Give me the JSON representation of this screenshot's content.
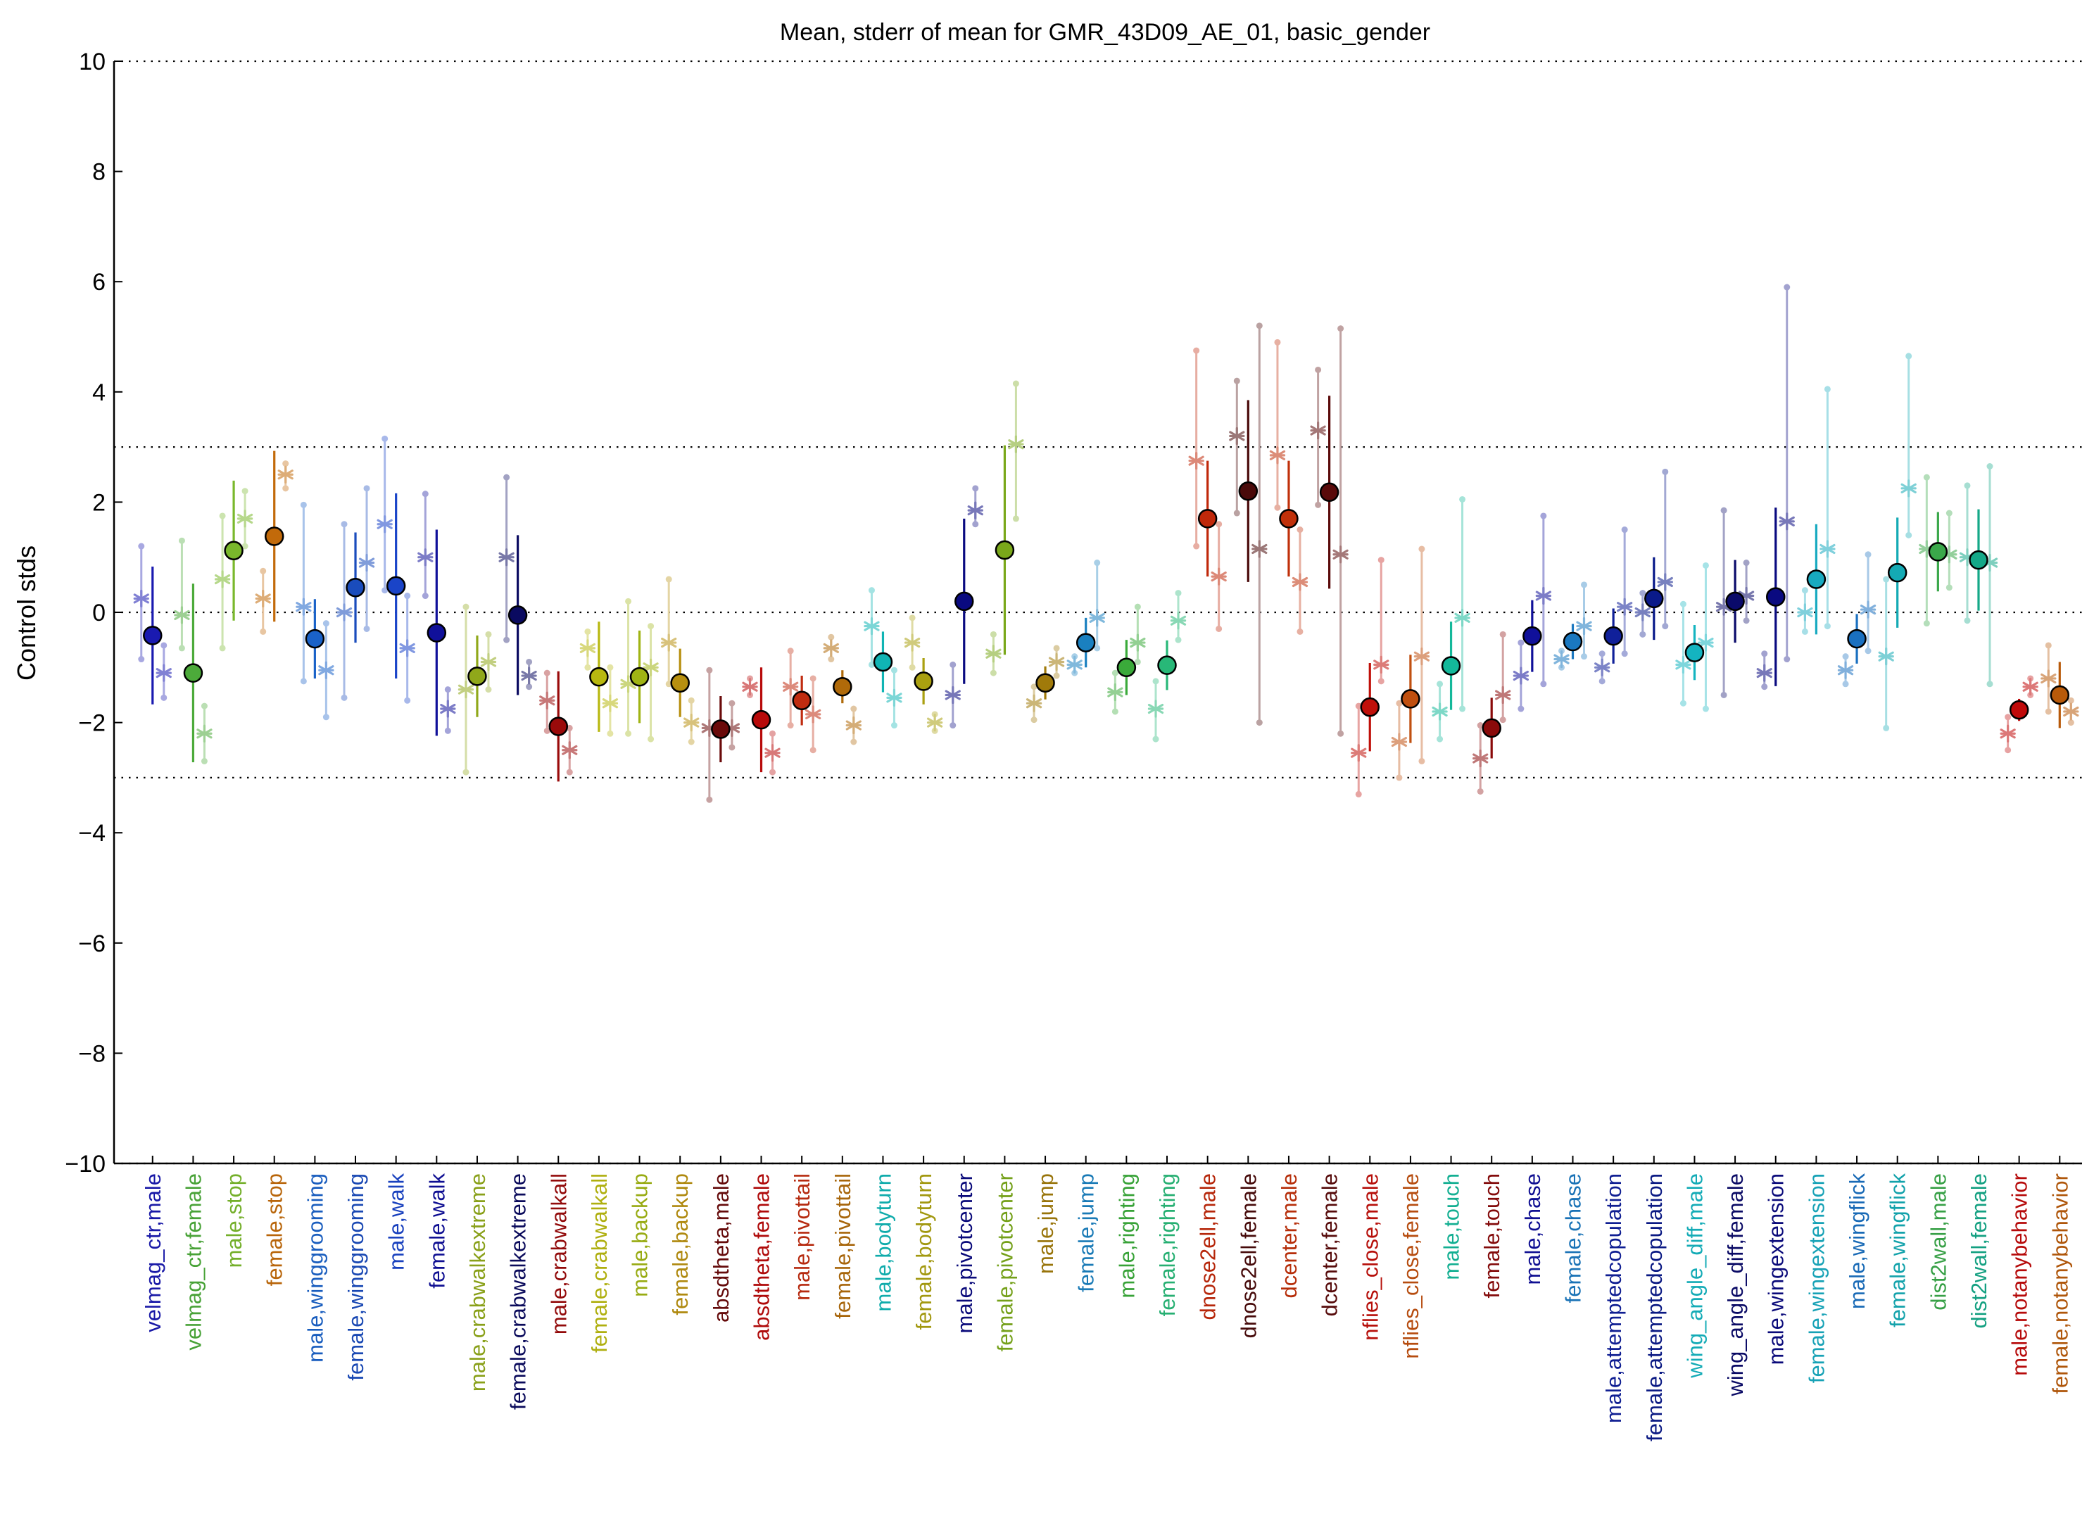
{
  "chart_data": {
    "type": "scatter",
    "title": "Mean, stderr of mean for GMR_43D09_AE_01, basic_gender",
    "ylabel": "Control stds",
    "ylim": [
      -10,
      10
    ],
    "yticks": [
      -10,
      -8,
      -6,
      -4,
      -2,
      0,
      2,
      4,
      6,
      8,
      10
    ],
    "ytick_labels": [
      "−10",
      "−8",
      "−6",
      "−4",
      "−2",
      "0",
      "2",
      "4",
      "6",
      "8",
      "10"
    ],
    "reference_lines": [
      10,
      3,
      0,
      -3,
      -10
    ],
    "categories": [
      {
        "label": "velmag_ctr,male",
        "color": "#1a1ab0",
        "mean": -0.42,
        "err": 1.25,
        "s1": 0.25,
        "s2": -1.1,
        "s1r": [
          -0.85,
          1.2
        ],
        "s2r": [
          -1.55,
          -0.6
        ]
      },
      {
        "label": "velmag_ctr,female",
        "color": "#4caa3a",
        "mean": -1.1,
        "err": 1.62,
        "s1": -0.05,
        "s2": -2.2,
        "s1r": [
          -0.65,
          1.3
        ],
        "s2r": [
          -2.7,
          -1.7
        ]
      },
      {
        "label": "male,stop",
        "color": "#7ab82c",
        "mean": 1.12,
        "err": 1.27,
        "s1": 0.6,
        "s2": 1.7,
        "s1r": [
          -0.65,
          1.75
        ],
        "s2r": [
          1.2,
          2.2
        ]
      },
      {
        "label": "female,stop",
        "color": "#c26a0a",
        "mean": 1.38,
        "err": 1.55,
        "s1": 0.25,
        "s2": 2.5,
        "s1r": [
          -0.35,
          0.75
        ],
        "s2r": [
          2.25,
          2.7
        ]
      },
      {
        "label": "male,winggrooming",
        "color": "#1a62c8",
        "mean": -0.48,
        "err": 0.72,
        "s1": 0.1,
        "s2": -1.05,
        "s1r": [
          -1.25,
          1.95
        ],
        "s2r": [
          -1.9,
          -0.2
        ]
      },
      {
        "label": "female,winggrooming",
        "color": "#1a4cbc",
        "mean": 0.45,
        "err": 1.0,
        "s1": 0.0,
        "s2": 0.9,
        "s1r": [
          -1.55,
          1.6
        ],
        "s2r": [
          -0.3,
          2.25
        ]
      },
      {
        "label": "male,walk",
        "color": "#1a44c8",
        "mean": 0.48,
        "err": 1.68,
        "s1": 1.6,
        "s2": -0.65,
        "s1r": [
          0.4,
          3.15
        ],
        "s2r": [
          -1.6,
          0.3
        ]
      },
      {
        "label": "female,walk",
        "color": "#10109a",
        "mean": -0.37,
        "err": 1.87,
        "s1": 1.0,
        "s2": -1.75,
        "s1r": [
          0.3,
          2.15
        ],
        "s2r": [
          -2.15,
          -1.4
        ]
      },
      {
        "label": "male,crabwalkextreme",
        "color": "#90a81a",
        "mean": -1.16,
        "err": 0.74,
        "s1": -1.4,
        "s2": -0.9,
        "s1r": [
          -2.9,
          0.1
        ],
        "s2r": [
          -1.4,
          -0.4
        ]
      },
      {
        "label": "female,crabwalkextreme",
        "color": "#0a0a60",
        "mean": -0.05,
        "err": 1.45,
        "s1": 1.0,
        "s2": -1.15,
        "s1r": [
          -0.5,
          2.45
        ],
        "s2r": [
          -1.35,
          -0.9
        ]
      },
      {
        "label": "male,crabwalkall",
        "color": "#9a0a0a",
        "mean": -2.07,
        "err": 1.0,
        "s1": -1.6,
        "s2": -2.5,
        "s1r": [
          -2.15,
          -1.1
        ],
        "s2r": [
          -2.9,
          -2.1
        ]
      },
      {
        "label": "female,crabwalkall",
        "color": "#b8b810",
        "mean": -1.17,
        "err": 1.0,
        "s1": -0.65,
        "s2": -1.65,
        "s1r": [
          -1.0,
          -0.35
        ],
        "s2r": [
          -2.2,
          -1.0
        ]
      },
      {
        "label": "male,backup",
        "color": "#a0b414",
        "mean": -1.17,
        "err": 0.84,
        "s1": -1.3,
        "s2": -1.0,
        "s1r": [
          -2.2,
          0.2
        ],
        "s2r": [
          -2.3,
          -0.25
        ]
      },
      {
        "label": "female,backup",
        "color": "#b89010",
        "mean": -1.28,
        "err": 0.62,
        "s1": -0.55,
        "s2": -2.0,
        "s1r": [
          -1.3,
          0.6
        ],
        "s2r": [
          -2.35,
          -1.6
        ]
      },
      {
        "label": "absdtheta,male",
        "color": "#6a0a0a",
        "mean": -2.12,
        "err": 0.6,
        "s1": -2.1,
        "s2": -2.1,
        "s1r": [
          -3.4,
          -1.05
        ],
        "s2r": [
          -2.45,
          -1.65
        ]
      },
      {
        "label": "absdtheta,female",
        "color": "#b80a0a",
        "mean": -1.95,
        "err": 0.95,
        "s1": -1.35,
        "s2": -2.55,
        "s1r": [
          -1.5,
          -1.2
        ],
        "s2r": [
          -2.9,
          -2.2
        ]
      },
      {
        "label": "male,pivottail",
        "color": "#c02c10",
        "mean": -1.6,
        "err": 0.45,
        "s1": -1.35,
        "s2": -1.85,
        "s1r": [
          -2.05,
          -0.7
        ],
        "s2r": [
          -2.5,
          -1.2
        ]
      },
      {
        "label": "female,pivottail",
        "color": "#b06a0a",
        "mean": -1.35,
        "err": 0.3,
        "s1": -0.65,
        "s2": -2.05,
        "s1r": [
          -0.85,
          -0.45
        ],
        "s2r": [
          -2.35,
          -1.75
        ]
      },
      {
        "label": "male,bodyturn",
        "color": "#10b4b4",
        "mean": -0.9,
        "err": 0.55,
        "s1": -0.25,
        "s2": -1.55,
        "s1r": [
          -0.95,
          0.4
        ],
        "s2r": [
          -2.05,
          -1.05
        ]
      },
      {
        "label": "female,bodyturn",
        "color": "#aaa010",
        "mean": -1.25,
        "err": 0.42,
        "s1": -0.55,
        "s2": -2.0,
        "s1r": [
          -1.0,
          -0.1
        ],
        "s2r": [
          -2.15,
          -1.85
        ]
      },
      {
        "label": "male,pivotcenter",
        "color": "#0a0a80",
        "mean": 0.2,
        "err": 1.5,
        "s1": -1.5,
        "s2": 1.85,
        "s1r": [
          -2.05,
          -0.95
        ],
        "s2r": [
          1.6,
          2.25
        ]
      },
      {
        "label": "female,pivotcenter",
        "color": "#7aa81a",
        "mean": 1.13,
        "err": 1.9,
        "s1": -0.75,
        "s2": 3.05,
        "s1r": [
          -1.1,
          -0.4
        ],
        "s2r": [
          1.7,
          4.15
        ]
      },
      {
        "label": "male,jump",
        "color": "#a07a0a",
        "mean": -1.28,
        "err": 0.3,
        "s1": -1.65,
        "s2": -0.9,
        "s1r": [
          -1.95,
          -1.35
        ],
        "s2r": [
          -1.15,
          -0.65
        ]
      },
      {
        "label": "female,jump",
        "color": "#1a80c0",
        "mean": -0.55,
        "err": 0.45,
        "s1": -0.95,
        "s2": -0.1,
        "s1r": [
          -1.1,
          -0.8
        ],
        "s2r": [
          -0.65,
          0.9
        ]
      },
      {
        "label": "male,righting",
        "color": "#3aaa3a",
        "mean": -1.0,
        "err": 0.5,
        "s1": -1.45,
        "s2": -0.55,
        "s1r": [
          -1.8,
          -1.1
        ],
        "s2r": [
          -0.9,
          0.1
        ]
      },
      {
        "label": "female,righting",
        "color": "#28b878",
        "mean": -0.96,
        "err": 0.45,
        "s1": -1.75,
        "s2": -0.15,
        "s1r": [
          -2.3,
          -1.25
        ],
        "s2r": [
          -0.5,
          0.35
        ]
      },
      {
        "label": "dnose2ell,male",
        "color": "#c0280a",
        "mean": 1.7,
        "err": 1.05,
        "s1": 2.75,
        "s2": 0.65,
        "s1r": [
          1.2,
          4.75
        ],
        "s2r": [
          -0.3,
          1.6
        ]
      },
      {
        "label": "dnose2ell,female",
        "color": "#4a0a0a",
        "mean": 2.2,
        "err": 1.65,
        "s1": 3.2,
        "s2": 1.15,
        "s1r": [
          1.8,
          4.2
        ],
        "s2r": [
          -2.0,
          5.2
        ]
      },
      {
        "label": "dcenter,male",
        "color": "#c0300a",
        "mean": 1.7,
        "err": 1.05,
        "s1": 2.85,
        "s2": 0.55,
        "s1r": [
          1.9,
          4.9
        ],
        "s2r": [
          -0.35,
          1.5
        ]
      },
      {
        "label": "dcenter,female",
        "color": "#5a0a0a",
        "mean": 2.18,
        "err": 1.75,
        "s1": 3.3,
        "s2": 1.05,
        "s1r": [
          1.95,
          4.4
        ],
        "s2r": [
          -2.2,
          5.15
        ]
      },
      {
        "label": "nflies_close,male",
        "color": "#c0100a",
        "mean": -1.72,
        "err": 0.8,
        "s1": -2.55,
        "s2": -0.95,
        "s1r": [
          -3.3,
          -1.7
        ],
        "s2r": [
          -1.25,
          0.95
        ]
      },
      {
        "label": "nflies_close,female",
        "color": "#c05010",
        "mean": -1.57,
        "err": 0.8,
        "s1": -2.35,
        "s2": -0.8,
        "s1r": [
          -3.0,
          -1.65
        ],
        "s2r": [
          -2.7,
          1.15
        ]
      },
      {
        "label": "male,touch",
        "color": "#14b89a",
        "mean": -0.97,
        "err": 0.8,
        "s1": -1.8,
        "s2": -0.1,
        "s1r": [
          -2.3,
          -1.3
        ],
        "s2r": [
          -1.75,
          2.05
        ]
      },
      {
        "label": "female,touch",
        "color": "#8a0a0a",
        "mean": -2.1,
        "err": 0.55,
        "s1": -2.65,
        "s2": -1.5,
        "s1r": [
          -3.25,
          -2.05
        ],
        "s2r": [
          -1.95,
          -0.4
        ]
      },
      {
        "label": "male,chase",
        "color": "#10109a",
        "mean": -0.43,
        "err": 0.65,
        "s1": -1.15,
        "s2": 0.3,
        "s1r": [
          -1.75,
          -0.55
        ],
        "s2r": [
          -1.3,
          1.75
        ]
      },
      {
        "label": "female,chase",
        "color": "#1a78c0",
        "mean": -0.53,
        "err": 0.32,
        "s1": -0.85,
        "s2": -0.25,
        "s1r": [
          -1.0,
          -0.7
        ],
        "s2r": [
          -0.8,
          0.5
        ]
      },
      {
        "label": "male,attemptedcopulation",
        "color": "#10209a",
        "mean": -0.43,
        "err": 0.5,
        "s1": -1.0,
        "s2": 0.1,
        "s1r": [
          -1.25,
          -0.75
        ],
        "s2r": [
          -0.75,
          1.5
        ]
      },
      {
        "label": "female,attemptedcopulation",
        "color": "#0a1a8a",
        "mean": 0.25,
        "err": 0.75,
        "s1": 0.0,
        "s2": 0.55,
        "s1r": [
          -0.4,
          0.35
        ],
        "s2r": [
          -0.25,
          2.55
        ]
      },
      {
        "label": "wing_angle_diff,male",
        "color": "#14b4c0",
        "mean": -0.73,
        "err": 0.5,
        "s1": -0.95,
        "s2": -0.55,
        "s1r": [
          -1.65,
          0.15
        ],
        "s2r": [
          -1.75,
          0.85
        ]
      },
      {
        "label": "wing_angle_diff,female",
        "color": "#0a0a6a",
        "mean": 0.2,
        "err": 0.75,
        "s1": 0.1,
        "s2": 0.3,
        "s1r": [
          -1.5,
          1.85
        ],
        "s2r": [
          -0.15,
          0.9
        ]
      },
      {
        "label": "male,wingextension",
        "color": "#0a0a80",
        "mean": 0.28,
        "err": 1.62,
        "s1": -1.1,
        "s2": 1.65,
        "s1r": [
          -1.35,
          -0.75
        ],
        "s2r": [
          -0.85,
          5.9
        ]
      },
      {
        "label": "female,wingextension",
        "color": "#18aac0",
        "mean": 0.6,
        "err": 1.0,
        "s1": 0.0,
        "s2": 1.15,
        "s1r": [
          -0.35,
          0.4
        ],
        "s2r": [
          -0.25,
          4.05
        ]
      },
      {
        "label": "male,wingflick",
        "color": "#1a70c0",
        "mean": -0.48,
        "err": 0.45,
        "s1": -1.05,
        "s2": 0.05,
        "s1r": [
          -1.3,
          -0.8
        ],
        "s2r": [
          -0.7,
          1.05
        ]
      },
      {
        "label": "female,wingflick",
        "color": "#14aab4",
        "mean": 0.72,
        "err": 1.0,
        "s1": -0.8,
        "s2": 2.25,
        "s1r": [
          -2.1,
          0.6
        ],
        "s2r": [
          1.4,
          4.65
        ]
      },
      {
        "label": "dist2wall,male",
        "color": "#3aa84a",
        "mean": 1.1,
        "err": 0.72,
        "s1": 1.15,
        "s2": 1.05,
        "s1r": [
          -0.2,
          2.45
        ],
        "s2r": [
          0.45,
          1.8
        ]
      },
      {
        "label": "dist2wall,female",
        "color": "#14a888",
        "mean": 0.95,
        "err": 0.92,
        "s1": 1.0,
        "s2": 0.9,
        "s1r": [
          -0.15,
          2.3
        ],
        "s2r": [
          -1.3,
          2.65
        ]
      },
      {
        "label": "male,notanybehavior",
        "color": "#c00a0a",
        "mean": -1.77,
        "err": 0.2,
        "s1": -2.2,
        "s2": -1.35,
        "s1r": [
          -2.5,
          -1.9
        ],
        "s2r": [
          -1.5,
          -1.2
        ]
      },
      {
        "label": "female,notanybehavior",
        "color": "#b85a0a",
        "mean": -1.5,
        "err": 0.6,
        "s1": -1.2,
        "s2": -1.8,
        "s1r": [
          -1.8,
          -0.6
        ],
        "s2r": [
          -2.0,
          -1.6
        ]
      }
    ]
  }
}
